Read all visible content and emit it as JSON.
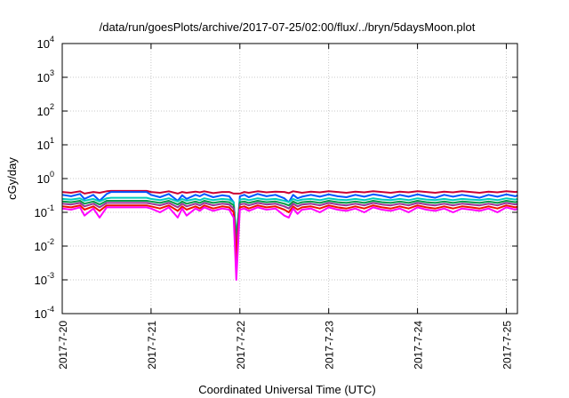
{
  "chart_data": {
    "type": "line",
    "title": "/data/run/goesPlots/archive/2017-07-25/02:00/flux/../bryn/5daysMoon.plot",
    "xlabel": "Coordinated Universal Time (UTC)",
    "ylabel": "cGy/day",
    "y_scale": "log",
    "ylim": [
      0.0001,
      10000
    ],
    "xlim": [
      "2017-07-20",
      "2017-07-25 03:00"
    ],
    "grid": true,
    "y_ticks": [
      {
        "mant": "10",
        "exp": "-4"
      },
      {
        "mant": "10",
        "exp": "-3"
      },
      {
        "mant": "10",
        "exp": "-2"
      },
      {
        "mant": "10",
        "exp": "-1"
      },
      {
        "mant": "10",
        "exp": "0"
      },
      {
        "mant": "10",
        "exp": "1"
      },
      {
        "mant": "10",
        "exp": "2"
      },
      {
        "mant": "10",
        "exp": "3"
      },
      {
        "mant": "10",
        "exp": "4"
      }
    ],
    "x_ticks": [
      "2017-7-20",
      "2017-7-21",
      "2017-7-22",
      "2017-7-23",
      "2017-7-24",
      "2017-7-25"
    ],
    "x_days": [
      0,
      0.1,
      0.2,
      0.25,
      0.35,
      0.42,
      0.5,
      0.55,
      0.6,
      0.7,
      0.8,
      0.9,
      0.95,
      1.0,
      1.1,
      1.2,
      1.3,
      1.35,
      1.4,
      1.5,
      1.55,
      1.6,
      1.7,
      1.8,
      1.88,
      1.93,
      1.96,
      2.0,
      2.05,
      2.1,
      2.2,
      2.3,
      2.4,
      2.5,
      2.55,
      2.6,
      2.65,
      2.7,
      2.8,
      2.9,
      3.0,
      3.1,
      3.2,
      3.3,
      3.4,
      3.5,
      3.6,
      3.7,
      3.8,
      3.9,
      4.0,
      4.1,
      4.2,
      4.3,
      4.4,
      4.5,
      4.6,
      4.7,
      4.8,
      4.9,
      5.0,
      5.1,
      5.13
    ],
    "series": [
      {
        "color": "#cc0033",
        "values": [
          0.4,
          0.38,
          0.42,
          0.36,
          0.4,
          0.38,
          0.42,
          0.43,
          0.43,
          0.43,
          0.43,
          0.43,
          0.43,
          0.4,
          0.38,
          0.42,
          0.36,
          0.4,
          0.38,
          0.41,
          0.39,
          0.42,
          0.37,
          0.4,
          0.4,
          0.36,
          0.36,
          0.36,
          0.4,
          0.38,
          0.42,
          0.39,
          0.41,
          0.4,
          0.37,
          0.42,
          0.4,
          0.38,
          0.41,
          0.39,
          0.42,
          0.4,
          0.38,
          0.41,
          0.39,
          0.42,
          0.4,
          0.38,
          0.41,
          0.39,
          0.42,
          0.4,
          0.38,
          0.41,
          0.39,
          0.42,
          0.4,
          0.38,
          0.41,
          0.39,
          0.42,
          0.4,
          0.41
        ]
      },
      {
        "color": "#0055ff",
        "values": [
          0.33,
          0.3,
          0.35,
          0.25,
          0.33,
          0.22,
          0.35,
          0.4,
          0.4,
          0.4,
          0.4,
          0.4,
          0.4,
          0.33,
          0.28,
          0.35,
          0.22,
          0.32,
          0.25,
          0.33,
          0.3,
          0.35,
          0.28,
          0.32,
          0.3,
          0.2,
          0.012,
          0.3,
          0.33,
          0.28,
          0.35,
          0.3,
          0.33,
          0.26,
          0.2,
          0.33,
          0.26,
          0.29,
          0.33,
          0.29,
          0.34,
          0.3,
          0.28,
          0.33,
          0.29,
          0.34,
          0.31,
          0.27,
          0.33,
          0.29,
          0.34,
          0.3,
          0.27,
          0.33,
          0.29,
          0.33,
          0.3,
          0.27,
          0.33,
          0.29,
          0.34,
          0.3,
          0.32
        ]
      },
      {
        "color": "#00ccbb",
        "values": [
          0.25,
          0.24,
          0.26,
          0.22,
          0.25,
          0.21,
          0.26,
          0.27,
          0.27,
          0.27,
          0.27,
          0.27,
          0.27,
          0.25,
          0.23,
          0.26,
          0.21,
          0.25,
          0.22,
          0.25,
          0.23,
          0.26,
          0.23,
          0.25,
          0.24,
          0.2,
          0.02,
          0.24,
          0.25,
          0.23,
          0.26,
          0.24,
          0.25,
          0.22,
          0.2,
          0.25,
          0.22,
          0.24,
          0.25,
          0.23,
          0.26,
          0.24,
          0.23,
          0.25,
          0.23,
          0.26,
          0.24,
          0.23,
          0.25,
          0.23,
          0.26,
          0.24,
          0.23,
          0.25,
          0.23,
          0.25,
          0.24,
          0.23,
          0.25,
          0.23,
          0.26,
          0.24,
          0.25
        ]
      },
      {
        "color": "#009944",
        "values": [
          0.21,
          0.2,
          0.22,
          0.18,
          0.21,
          0.17,
          0.22,
          0.22,
          0.22,
          0.22,
          0.22,
          0.22,
          0.22,
          0.21,
          0.19,
          0.22,
          0.17,
          0.21,
          0.18,
          0.21,
          0.19,
          0.22,
          0.19,
          0.21,
          0.2,
          0.16,
          0.015,
          0.2,
          0.21,
          0.19,
          0.22,
          0.2,
          0.21,
          0.18,
          0.16,
          0.21,
          0.18,
          0.2,
          0.21,
          0.19,
          0.22,
          0.2,
          0.19,
          0.21,
          0.19,
          0.22,
          0.2,
          0.19,
          0.21,
          0.19,
          0.22,
          0.2,
          0.19,
          0.21,
          0.19,
          0.21,
          0.2,
          0.19,
          0.21,
          0.19,
          0.22,
          0.2,
          0.21
        ]
      },
      {
        "color": "#993399",
        "values": [
          0.18,
          0.17,
          0.19,
          0.15,
          0.18,
          0.14,
          0.19,
          0.19,
          0.19,
          0.19,
          0.19,
          0.19,
          0.19,
          0.18,
          0.16,
          0.19,
          0.14,
          0.18,
          0.15,
          0.18,
          0.16,
          0.19,
          0.16,
          0.18,
          0.17,
          0.13,
          0.008,
          0.17,
          0.18,
          0.16,
          0.19,
          0.17,
          0.18,
          0.15,
          0.13,
          0.18,
          0.15,
          0.17,
          0.18,
          0.16,
          0.19,
          0.17,
          0.16,
          0.18,
          0.16,
          0.19,
          0.17,
          0.16,
          0.18,
          0.16,
          0.19,
          0.17,
          0.16,
          0.18,
          0.16,
          0.18,
          0.17,
          0.16,
          0.18,
          0.16,
          0.19,
          0.17,
          0.18
        ]
      },
      {
        "color": "#ee1100",
        "values": [
          0.15,
          0.14,
          0.16,
          0.12,
          0.15,
          0.11,
          0.16,
          0.16,
          0.16,
          0.16,
          0.16,
          0.16,
          0.16,
          0.15,
          0.13,
          0.16,
          0.11,
          0.15,
          0.12,
          0.15,
          0.13,
          0.16,
          0.13,
          0.15,
          0.14,
          0.1,
          0.004,
          0.14,
          0.15,
          0.13,
          0.16,
          0.14,
          0.15,
          0.12,
          0.1,
          0.15,
          0.12,
          0.14,
          0.15,
          0.13,
          0.16,
          0.14,
          0.13,
          0.15,
          0.13,
          0.16,
          0.14,
          0.13,
          0.15,
          0.13,
          0.16,
          0.14,
          0.13,
          0.15,
          0.13,
          0.15,
          0.14,
          0.13,
          0.15,
          0.13,
          0.16,
          0.14,
          0.15
        ]
      },
      {
        "color": "#ff00ff",
        "values": [
          0.13,
          0.12,
          0.14,
          0.08,
          0.13,
          0.07,
          0.14,
          0.14,
          0.14,
          0.14,
          0.14,
          0.14,
          0.14,
          0.13,
          0.1,
          0.14,
          0.07,
          0.13,
          0.08,
          0.13,
          0.11,
          0.14,
          0.11,
          0.13,
          0.12,
          0.07,
          0.001,
          0.12,
          0.13,
          0.11,
          0.14,
          0.12,
          0.13,
          0.08,
          0.07,
          0.13,
          0.09,
          0.12,
          0.13,
          0.1,
          0.14,
          0.12,
          0.11,
          0.13,
          0.1,
          0.14,
          0.12,
          0.11,
          0.13,
          0.1,
          0.14,
          0.12,
          0.11,
          0.13,
          0.1,
          0.13,
          0.12,
          0.11,
          0.13,
          0.1,
          0.14,
          0.12,
          0.13
        ]
      }
    ]
  }
}
